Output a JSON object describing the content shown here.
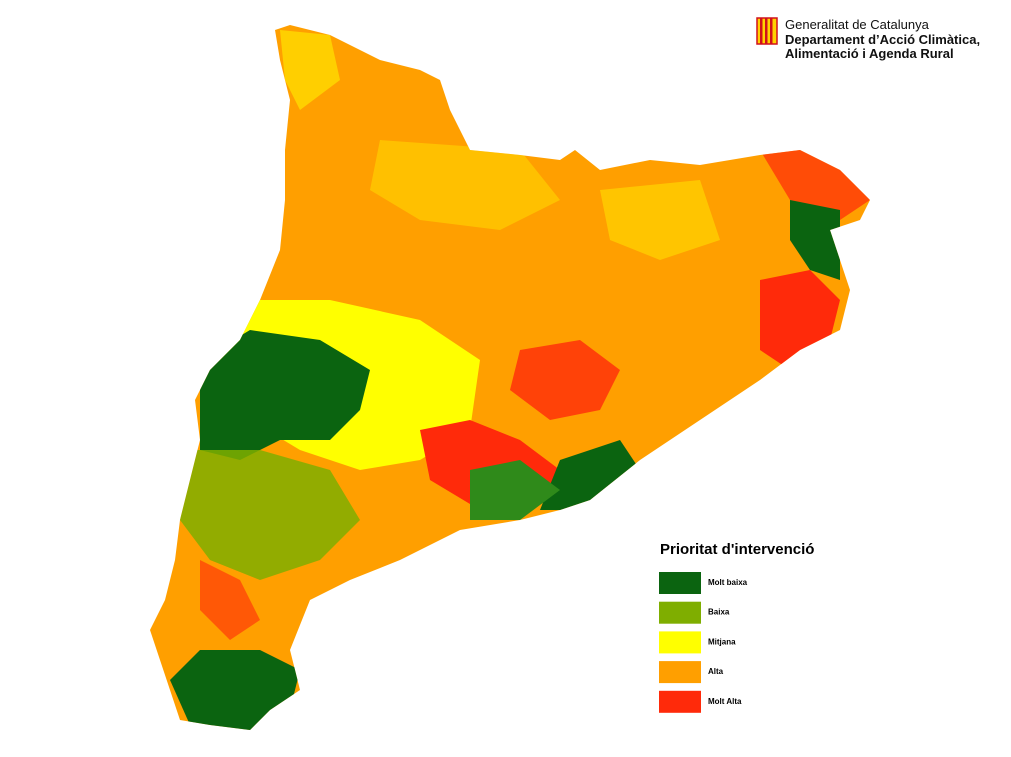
{
  "header": {
    "line1": "Generalitat de Catalunya",
    "line2": "Departament d’Acció Climàtica,",
    "line3": "Alimentació i Agenda Rural"
  },
  "legend": {
    "title": "Prioritat d'intervenció",
    "items": [
      {
        "label": "Molt baixa",
        "color": "#0b6410"
      },
      {
        "label": "Baixa",
        "color": "#7fae00"
      },
      {
        "label": "Mitjana",
        "color": "#ffff00"
      },
      {
        "label": "Alta",
        "color": "#ff9f00"
      },
      {
        "label": "Molt Alta",
        "color": "#ff2a0a"
      }
    ]
  }
}
